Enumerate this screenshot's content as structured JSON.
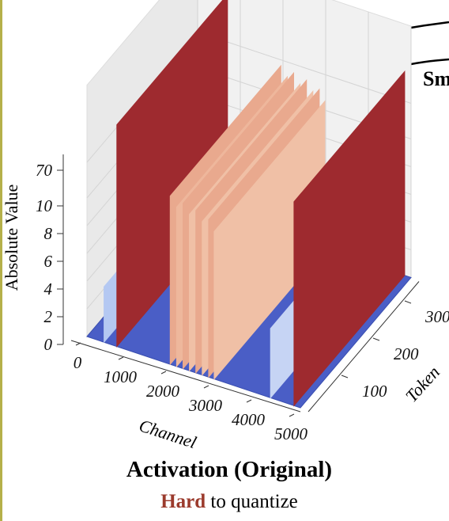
{
  "chart_data": {
    "type": "surface3d",
    "title": "Activation (Original)",
    "subtitle_emphasis": "Hard",
    "subtitle": "to quantize",
    "zlabel": "Absolute Value",
    "xlabel": "Channel",
    "ylabel": "Token",
    "side_text": "Sm",
    "xlim": [
      0,
      5000
    ],
    "xticks": [
      0,
      1000,
      2000,
      3000,
      4000,
      5000
    ],
    "ylim": [
      0,
      350
    ],
    "yticks": [
      100,
      200,
      300
    ],
    "zticks": [
      0,
      2,
      4,
      6,
      8,
      10,
      70
    ],
    "floor_color": "#4a5ec6",
    "walls": [
      {
        "channel": 400,
        "value": 4,
        "color": "#b4c8f2"
      },
      {
        "channel": 700,
        "value": 150,
        "color": "#9e2a2f"
      },
      {
        "channel": 1950,
        "value": 60,
        "color": "#e9a98e"
      },
      {
        "channel": 2100,
        "value": 45,
        "color": "#eeb79c"
      },
      {
        "channel": 2250,
        "value": 55,
        "color": "#e9a98e"
      },
      {
        "channel": 2400,
        "value": 40,
        "color": "#f0c0a6"
      },
      {
        "channel": 2550,
        "value": 50,
        "color": "#e9a98e"
      },
      {
        "channel": 2700,
        "value": 35,
        "color": "#f0c0a6"
      },
      {
        "channel": 2850,
        "value": 42,
        "color": "#e9a98e"
      },
      {
        "channel": 2980,
        "value": 25,
        "color": "#f0c0a6"
      },
      {
        "channel": 4300,
        "value": 5,
        "color": "#c6d4f4"
      },
      {
        "channel": 4850,
        "value": 120,
        "color": "#9e2a2f"
      }
    ]
  }
}
